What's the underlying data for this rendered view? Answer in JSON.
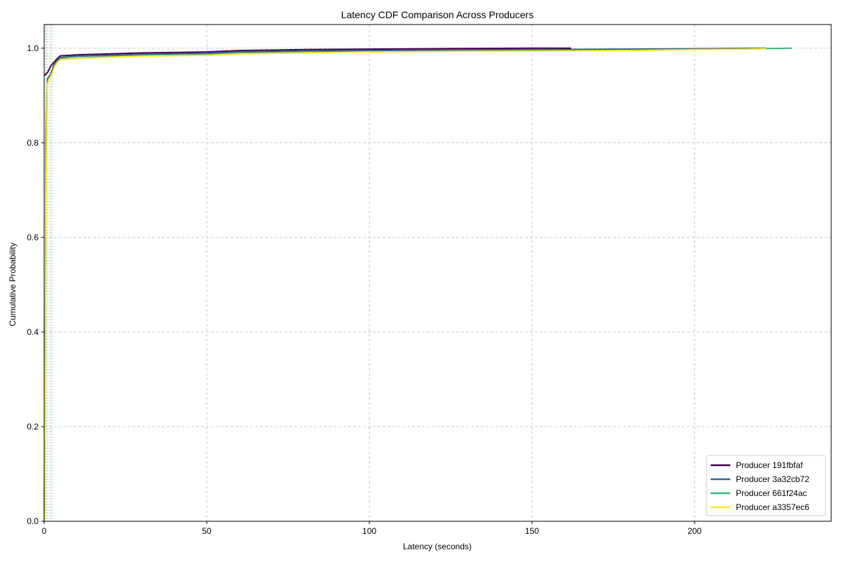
{
  "chart_data": {
    "type": "line",
    "title": "Latency CDF Comparison Across Producers",
    "xlabel": "Latency (seconds)",
    "ylabel": "Cumulative Probability",
    "xlim": [
      0,
      242
    ],
    "ylim": [
      0,
      1.05
    ],
    "x_ticks": [
      0,
      50,
      100,
      150,
      200
    ],
    "y_ticks": [
      0.0,
      0.2,
      0.4,
      0.6,
      0.8,
      1.0
    ],
    "x_tick_labels": [
      "0",
      "50",
      "100",
      "150",
      "200"
    ],
    "y_tick_labels": [
      "0.0",
      "0.2",
      "0.4",
      "0.6",
      "0.8",
      "1.0"
    ],
    "grid": true,
    "legend_position": "bottom-right",
    "reference_lines_x": [
      0.4,
      0.9,
      1.8,
      2.4
    ],
    "reference_line_color": "#9fd3a8",
    "series": [
      {
        "name": "Producer 191fbfaf",
        "color": "#440154",
        "x": [
          0,
          0.5,
          1,
          1.5,
          2,
          3,
          4,
          5,
          8,
          10,
          20,
          30,
          50,
          60,
          80,
          100,
          120,
          150,
          162
        ],
        "y": [
          0.942,
          0.945,
          0.948,
          0.955,
          0.962,
          0.97,
          0.978,
          0.984,
          0.985,
          0.986,
          0.988,
          0.99,
          0.992,
          0.995,
          0.997,
          0.998,
          0.999,
          1.0,
          1.0
        ]
      },
      {
        "name": "Producer 3a32cb72",
        "color": "#31688e",
        "x": [
          0,
          0.3,
          0.6,
          1.0,
          1.5,
          2,
          2.5,
          3,
          4,
          5,
          8,
          10,
          20,
          30,
          50,
          60,
          80,
          100,
          120,
          150,
          180,
          200,
          222
        ],
        "y": [
          0.0,
          0.3,
          0.8,
          0.935,
          0.94,
          0.945,
          0.955,
          0.965,
          0.974,
          0.98,
          0.982,
          0.983,
          0.985,
          0.987,
          0.989,
          0.992,
          0.994,
          0.995,
          0.996,
          0.997,
          0.998,
          0.999,
          1.0
        ]
      },
      {
        "name": "Producer 661f24ac",
        "color": "#35b779",
        "x": [
          0,
          0.3,
          0.6,
          1.0,
          1.5,
          2,
          2.5,
          3,
          4,
          5,
          8,
          10,
          20,
          30,
          50,
          60,
          80,
          100,
          120,
          150,
          180,
          200,
          220,
          230
        ],
        "y": [
          0.0,
          0.25,
          0.75,
          0.93,
          0.935,
          0.94,
          0.948,
          0.958,
          0.97,
          0.977,
          0.978,
          0.979,
          0.982,
          0.984,
          0.986,
          0.989,
          0.991,
          0.993,
          0.994,
          0.995,
          0.996,
          0.998,
          0.999,
          1.0
        ]
      },
      {
        "name": "Producer a3357ec6",
        "color": "#fde725",
        "x": [
          0,
          0.3,
          0.6,
          1.0,
          1.5,
          2,
          2.5,
          3,
          4,
          5,
          8,
          10,
          20,
          30,
          50,
          60,
          80,
          100,
          120,
          150,
          180,
          200,
          216,
          222
        ],
        "y": [
          0.0,
          0.25,
          0.7,
          0.925,
          0.935,
          0.94,
          0.948,
          0.958,
          0.97,
          0.976,
          0.977,
          0.978,
          0.981,
          0.983,
          0.985,
          0.988,
          0.99,
          0.992,
          0.993,
          0.994,
          0.995,
          0.997,
          0.998,
          0.999
        ]
      }
    ]
  }
}
